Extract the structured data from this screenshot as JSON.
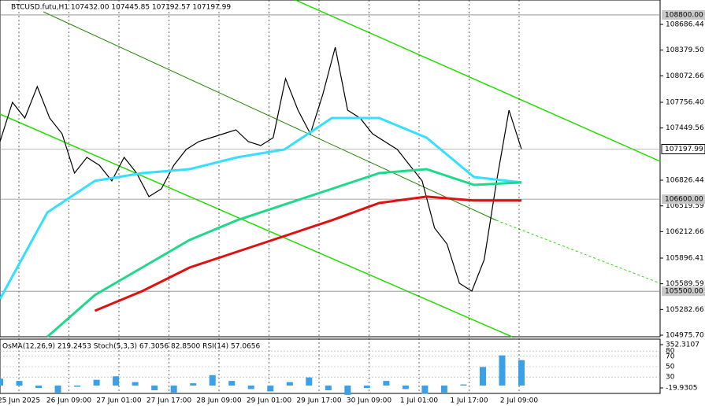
{
  "header": "BTCUSD.futu,H1  107432.00 107445.85 107192.57 107197.99",
  "chart_data": {
    "type": "line",
    "ylim": [
      104957,
      108978
    ],
    "yticks": [
      {
        "value": 108686.44,
        "label": "108686.44"
      },
      {
        "value": 108379.5,
        "label": "108379.50"
      },
      {
        "value": 108072.66,
        "label": "108072.66"
      },
      {
        "value": 107756.4,
        "label": "107756.40"
      },
      {
        "value": 107449.56,
        "label": "107449.56"
      },
      {
        "value": 106826.44,
        "label": "106826.44"
      },
      {
        "value": 106519.59,
        "label": "106519.59"
      },
      {
        "value": 106212.66,
        "label": "106212.66"
      },
      {
        "value": 105896.41,
        "label": "105896.41"
      },
      {
        "value": 105589.59,
        "label": "105589.59"
      },
      {
        "value": 105282.66,
        "label": "105282.66"
      },
      {
        "value": 104975.7,
        "label": "104975.70"
      }
    ],
    "levels": [
      {
        "value": 108800,
        "label": "108800.00"
      },
      {
        "value": 106600,
        "label": "106600.00"
      },
      {
        "value": 105500,
        "label": "105500.00"
      }
    ],
    "current": {
      "value": 107197.99,
      "label": "107197.99"
    },
    "x_labels": [
      "25 Jun 2025",
      "26 Jun 09:00",
      "27 Jun 01:00",
      "27 Jun 17:00",
      "28 Jun 09:00",
      "29 Jun 01:00",
      "29 Jun 17:00",
      "30 Jun 09:00",
      "1 Jul 01:00",
      "1 Jul 17:00",
      "2 Jul 09:00"
    ],
    "series": [
      {
        "color": "#000000",
        "values": [
          107287,
          107757,
          107569,
          107945,
          107569,
          107381,
          106911,
          107099,
          107005,
          106818,
          107099,
          106911,
          106630,
          106723,
          107005,
          107193,
          107287,
          107334,
          107381,
          107428,
          107287,
          107240,
          107334,
          108039,
          107663,
          107381,
          107851,
          108414,
          107663,
          107569,
          107381,
          107287,
          107193,
          107005,
          106818,
          106254,
          106066,
          105596,
          105502,
          105878,
          106818,
          107663,
          107198
        ]
      },
      {
        "color": "#33e0ff",
        "values": [
          105408,
          106442,
          106818,
          106911,
          106958,
          107099,
          107193,
          107569,
          107569,
          107334,
          106864,
          106799
        ]
      },
      {
        "color": "#1fd98a",
        "values": [
          null,
          104957,
          105455,
          105784,
          106113,
          106348,
          106536,
          106723,
          106911,
          106958,
          106770,
          106799
        ]
      },
      {
        "color": "#e01010",
        "values": [
          null,
          null,
          105267,
          105502,
          105784,
          105972,
          106160,
          106348,
          106554,
          106630,
          106583,
          106583
        ]
      }
    ],
    "indicator": {
      "label": "OsMA(12,26,9) 219.2453  Stoch(5,3,3) 67.3056 82.8500  RSI(14) 57.0656",
      "ylim": [
        -19.9305,
        352.3107
      ],
      "yticks": [
        {
          "value": 352.3107,
          "label": "352.3107"
        },
        {
          "value": -19.9305,
          "label": "-19.9305"
        }
      ],
      "levels": [
        80,
        70,
        50,
        30
      ],
      "osma": [
        60,
        40,
        -20,
        -60,
        -10,
        50,
        80,
        30,
        -40,
        -60,
        20,
        90,
        40,
        -30,
        -50,
        30,
        70,
        -40,
        -80,
        -20,
        40,
        -30,
        -70,
        -60,
        10,
        160,
        260,
        219
      ]
    }
  }
}
